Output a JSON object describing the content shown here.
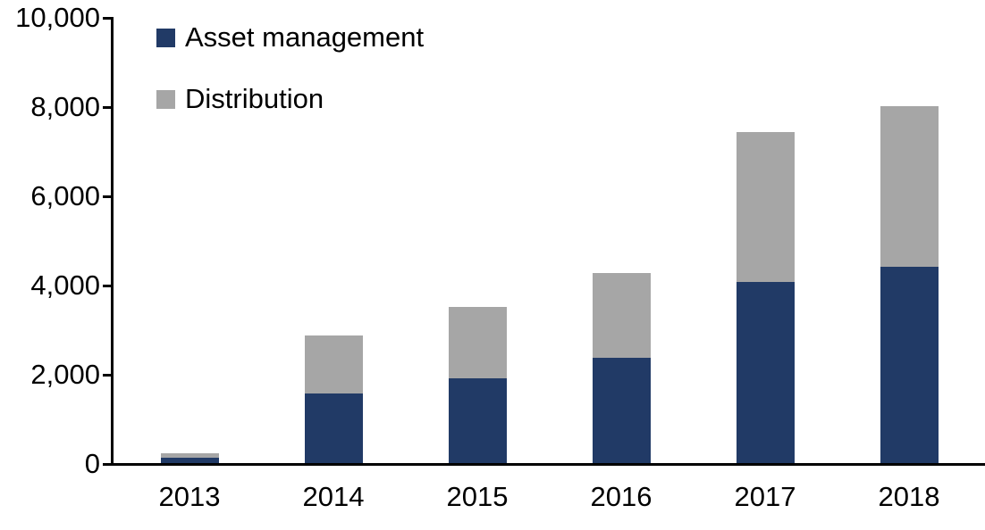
{
  "chart_data": {
    "type": "bar",
    "stacked": true,
    "title": "",
    "xlabel": "",
    "ylabel": "",
    "categories": [
      "2013",
      "2014",
      "2015",
      "2016",
      "2017",
      "2018"
    ],
    "series": [
      {
        "name": "Asset management",
        "color": "#213A66",
        "values": [
          120,
          1550,
          1900,
          2350,
          4050,
          4400
        ]
      },
      {
        "name": "Distribution",
        "color": "#A6A6A6",
        "values": [
          100,
          1300,
          1600,
          1900,
          3350,
          3600
        ]
      }
    ],
    "totals": [
      220,
      2850,
      3500,
      4250,
      7400,
      8000
    ],
    "ylim": [
      0,
      10000
    ],
    "y_ticks": [
      0,
      2000,
      4000,
      6000,
      8000,
      10000
    ],
    "y_tick_labels": [
      "0",
      "2,000",
      "4,000",
      "6,000",
      "8,000",
      "10,000"
    ],
    "grid": false,
    "legend_position": "top-left",
    "axis_color": "#000000",
    "text_color": "#000000"
  }
}
